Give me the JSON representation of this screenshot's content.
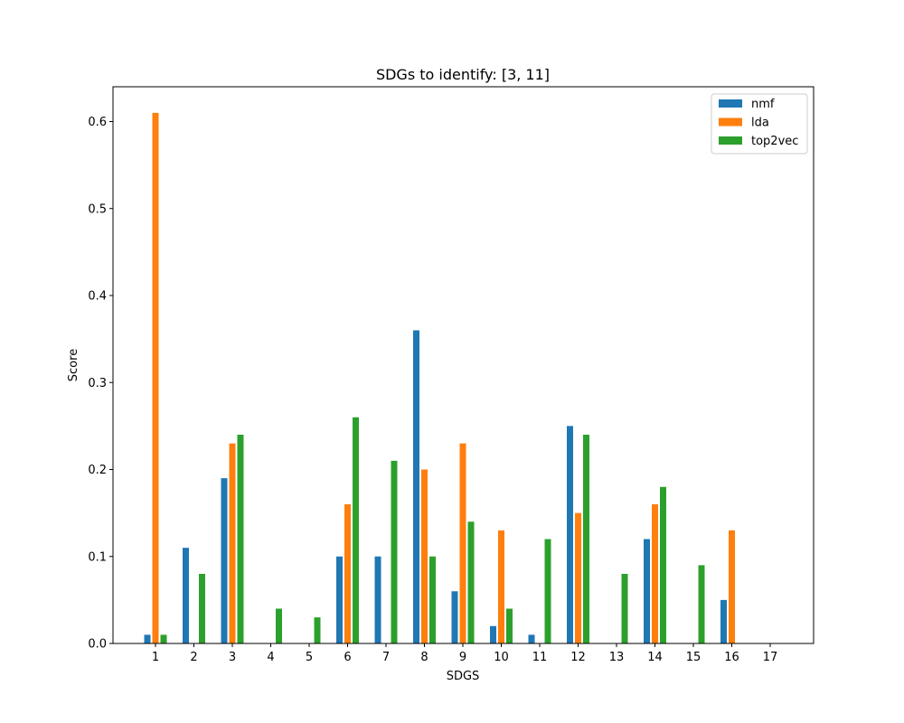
{
  "chart_data": {
    "type": "bar",
    "title": "SDGs to identify: [3, 11]",
    "xlabel": "SDGS",
    "ylabel": "Score",
    "categories": [
      "1",
      "2",
      "3",
      "4",
      "5",
      "6",
      "7",
      "8",
      "9",
      "10",
      "11",
      "12",
      "13",
      "14",
      "15",
      "16",
      "17"
    ],
    "ylim": [
      0,
      0.64
    ],
    "yticks": [
      "0.0",
      "0.1",
      "0.2",
      "0.3",
      "0.4",
      "0.5",
      "0.6"
    ],
    "ytick_values": [
      0,
      0.1,
      0.2,
      0.3,
      0.4,
      0.5,
      0.6
    ],
    "legend_position": "top-right",
    "grid": false,
    "series": [
      {
        "name": "nmf",
        "color": "#1f77b4",
        "values": [
          0.01,
          0.11,
          0.19,
          0,
          0,
          0.1,
          0.1,
          0.36,
          0.06,
          0.02,
          0.01,
          0.25,
          0,
          0.12,
          0,
          0.05,
          0
        ]
      },
      {
        "name": "lda",
        "color": "#ff7f0e",
        "values": [
          0.61,
          0,
          0.23,
          0,
          0,
          0.16,
          0,
          0.2,
          0.23,
          0.13,
          0,
          0.15,
          0,
          0.16,
          0,
          0.13,
          0
        ]
      },
      {
        "name": "top2vec",
        "color": "#2ca02c",
        "values": [
          0.01,
          0.08,
          0.24,
          0.04,
          0.03,
          0.26,
          0.21,
          0.1,
          0.14,
          0.04,
          0.12,
          0.24,
          0.08,
          0.18,
          0.09,
          0,
          0
        ]
      }
    ]
  }
}
